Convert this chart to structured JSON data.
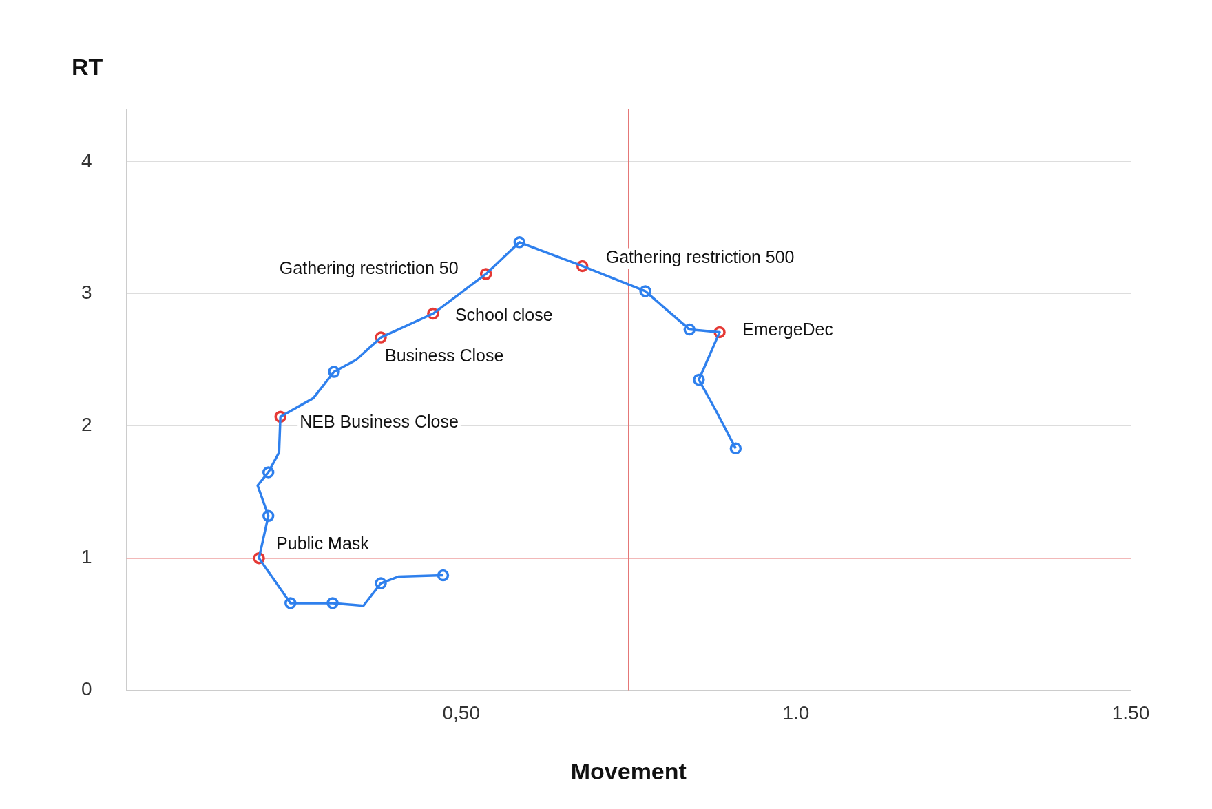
{
  "chart_data": {
    "type": "line",
    "xlabel": "Movement",
    "ylabel": "RT",
    "xlim": [
      0,
      1.5
    ],
    "ylim": [
      0,
      4.4
    ],
    "xticks": [
      {
        "value": 0.5,
        "label": "0,50"
      },
      {
        "value": 1.0,
        "label": "1.0"
      },
      {
        "value": 1.5,
        "label": "1.50"
      }
    ],
    "yticks": [
      0,
      1,
      2,
      3,
      4
    ],
    "grid": "y",
    "legend": false,
    "series": [
      {
        "color": "#2f80ed",
        "marker": "none",
        "x": [
          0.473,
          0.406,
          0.38,
          0.354,
          0.308,
          0.245,
          0.198,
          0.212,
          0.196,
          0.212,
          0.228,
          0.23,
          0.279,
          0.31,
          0.343,
          0.38,
          0.458,
          0.537,
          0.587,
          0.681,
          0.775,
          0.841,
          0.886,
          0.855,
          0.879,
          0.91
        ],
        "values": [
          0.87,
          0.86,
          0.81,
          0.64,
          0.66,
          0.66,
          1.0,
          1.32,
          1.55,
          1.65,
          1.8,
          2.07,
          2.21,
          2.41,
          2.5,
          2.67,
          2.85,
          3.15,
          3.39,
          3.21,
          3.02,
          2.73,
          2.71,
          2.35,
          2.13,
          1.83
        ]
      },
      {
        "type": "scatter",
        "marker": "circle",
        "x": [
          0.473,
          0.38,
          0.308,
          0.245,
          0.198,
          0.212,
          0.212,
          0.23,
          0.31,
          0.38,
          0.458,
          0.537,
          0.587,
          0.681,
          0.775,
          0.841,
          0.886,
          0.855,
          0.91
        ],
        "values": [
          0.87,
          0.81,
          0.66,
          0.66,
          1.0,
          1.32,
          1.65,
          2.07,
          2.41,
          2.67,
          2.85,
          3.15,
          3.39,
          3.21,
          3.02,
          2.73,
          2.71,
          2.35,
          1.83
        ],
        "colors": [
          "#2f80ed",
          "#2f80ed",
          "#2f80ed",
          "#2f80ed",
          "#e53935",
          "#2f80ed",
          "#2f80ed",
          "#e53935",
          "#2f80ed",
          "#e53935",
          "#e53935",
          "#e53935",
          "#2f80ed",
          "#e53935",
          "#2f80ed",
          "#2f80ed",
          "#e53935",
          "#2f80ed",
          "#2f80ed"
        ]
      }
    ],
    "ref_lines": [
      {
        "axis": "y",
        "value": 1,
        "color": "#e57373"
      },
      {
        "axis": "x",
        "value": 0.75,
        "color": "#e57373"
      }
    ],
    "annotations": [
      {
        "text": "Public Mask",
        "x": 0.198,
        "y": 1.0
      },
      {
        "text": "NEB Business Close",
        "x": 0.23,
        "y": 2.07
      },
      {
        "text": "Business Close",
        "x": 0.38,
        "y": 2.67
      },
      {
        "text": "School close",
        "x": 0.458,
        "y": 2.85
      },
      {
        "text": "Gathering restriction 50",
        "x": 0.537,
        "y": 3.15
      },
      {
        "text": "Gathering restriction 500",
        "x": 0.681,
        "y": 3.21
      },
      {
        "text": "EmergeDec",
        "x": 0.886,
        "y": 2.71
      }
    ]
  }
}
